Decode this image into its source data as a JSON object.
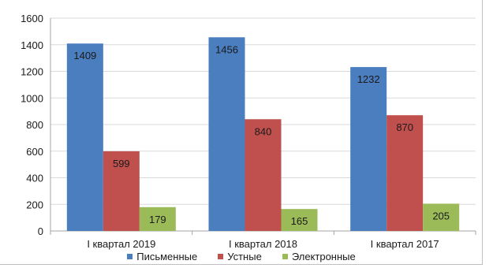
{
  "chart_data": {
    "type": "bar",
    "title": "",
    "xlabel": "",
    "ylabel": "",
    "categories": [
      "I квартал  2019",
      "I квартал  2018",
      "I квартал  2017"
    ],
    "series": [
      {
        "name": "Письменные",
        "color": "#4a7ebf",
        "values": [
          1409,
          1456,
          1232
        ]
      },
      {
        "name": "Устные",
        "color": "#c0504d",
        "values": [
          599,
          840,
          870
        ]
      },
      {
        "name": "Электронные",
        "color": "#9bbb59",
        "values": [
          179,
          165,
          205
        ]
      }
    ],
    "ylim": [
      0,
      1600
    ],
    "yticks": [
      0,
      200,
      400,
      600,
      800,
      1000,
      1200,
      1400,
      1600
    ],
    "grid": true,
    "legend": "bottom"
  }
}
